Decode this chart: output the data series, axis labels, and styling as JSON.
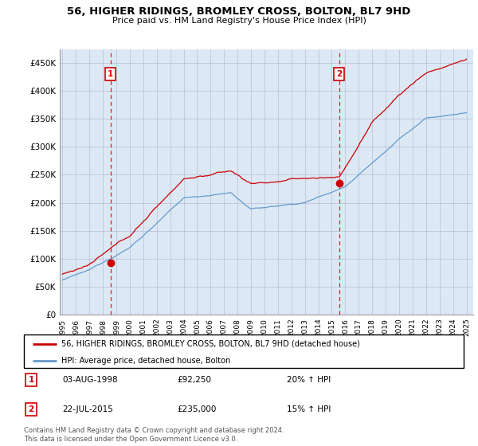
{
  "title": "56, HIGHER RIDINGS, BROMLEY CROSS, BOLTON, BL7 9HD",
  "subtitle": "Price paid vs. HM Land Registry's House Price Index (HPI)",
  "ylabel_ticks": [
    0,
    50000,
    100000,
    150000,
    200000,
    250000,
    300000,
    350000,
    400000,
    450000
  ],
  "ylabel_labels": [
    "£0",
    "£50K",
    "£100K",
    "£150K",
    "£200K",
    "£250K",
    "£300K",
    "£350K",
    "£400K",
    "£450K"
  ],
  "xlim": [
    1994.8,
    2025.5
  ],
  "ylim": [
    0,
    475000
  ],
  "sale1_x": 1998.58,
  "sale1_y": 92250,
  "sale1_label": "1",
  "sale2_x": 2015.55,
  "sale2_y": 235000,
  "sale2_label": "2",
  "red_color": "#cc0000",
  "blue_color": "#6699cc",
  "plot_bg_color": "#dce9f5",
  "legend_label_red": "56, HIGHER RIDINGS, BROMLEY CROSS, BOLTON, BL7 9HD (detached house)",
  "legend_label_blue": "HPI: Average price, detached house, Bolton",
  "table_rows": [
    [
      "1",
      "03-AUG-1998",
      "£92,250",
      "20% ↑ HPI"
    ],
    [
      "2",
      "22-JUL-2015",
      "£235,000",
      "15% ↑ HPI"
    ]
  ],
  "copyright": "Contains HM Land Registry data © Crown copyright and database right 2024.\nThis data is licensed under the Open Government Licence v3.0.",
  "background_color": "#ffffff",
  "grid_color": "#aaaacc"
}
